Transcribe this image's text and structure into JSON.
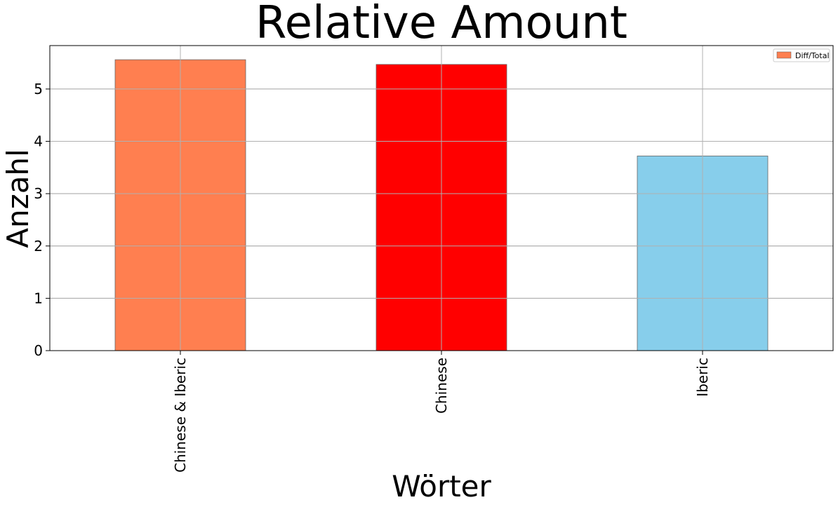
{
  "chart_data": {
    "type": "bar",
    "title": "Relative Amount",
    "xlabel": "Wörter",
    "ylabel": "Anzahl",
    "categories": [
      "Chinese & Iberic",
      "Chinese",
      "Iberic"
    ],
    "series": [
      {
        "name": "Diff/Total",
        "values": [
          5.56,
          5.47,
          3.72
        ]
      }
    ],
    "bar_colors": [
      "#FF7F50",
      "#FF0000",
      "#87CEEB"
    ],
    "legend_color": "#FF7F50",
    "ylim": [
      0,
      5.83
    ],
    "yticks": [
      0,
      1,
      2,
      3,
      4,
      5
    ],
    "grid": true,
    "legend_position": "top-right"
  }
}
